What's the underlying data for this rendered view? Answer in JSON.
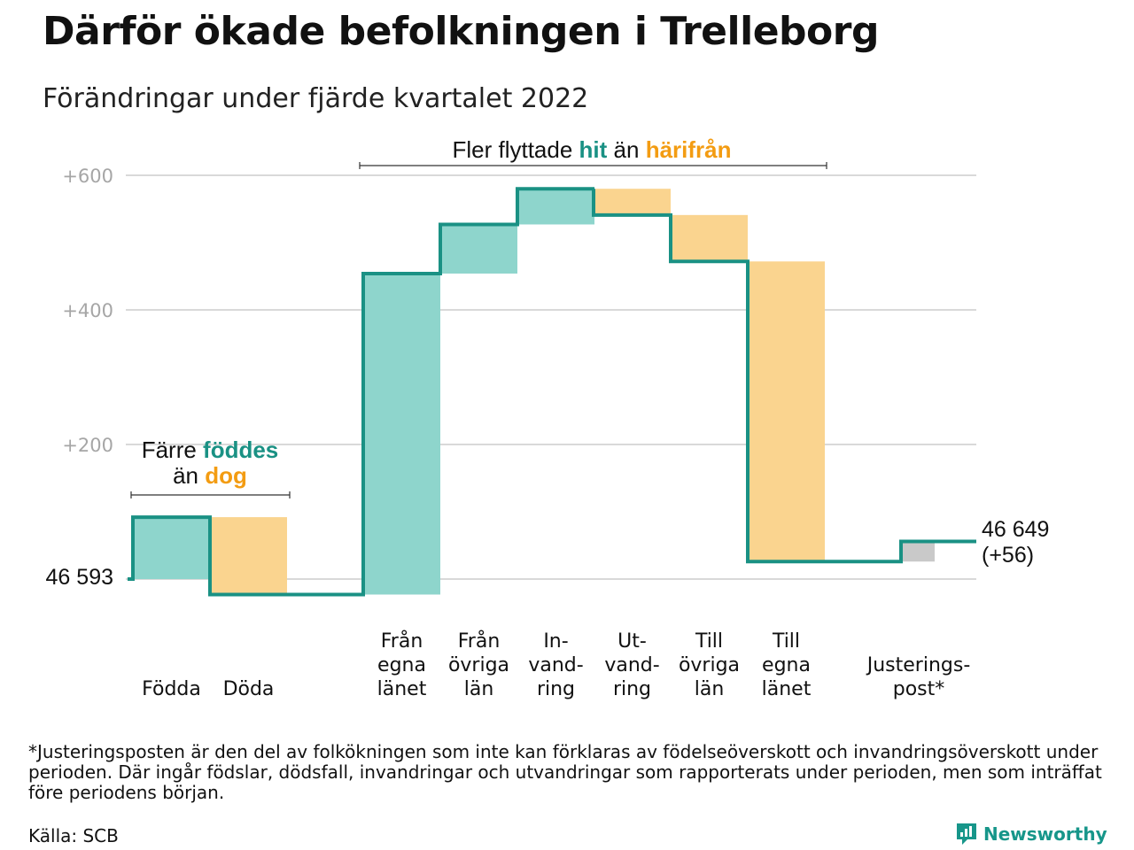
{
  "title": "Därför ökade befolkningen i Trelleborg",
  "subtitle": "Förändringar under fjärde kvartalet 2022",
  "colors": {
    "increase": "#8ed5cc",
    "decrease": "#fad48f",
    "adjustment": "#c9c9c9",
    "line": "#1a9184",
    "teal_text": "#1a9184",
    "orange_text": "#f39c12",
    "grid": "#d9d9d9",
    "tick": "#a6a6a6"
  },
  "chart_data": {
    "type": "waterfall",
    "start": {
      "label": "46 593",
      "population": 46593
    },
    "end": {
      "label_line1": "46 649",
      "label_line2": "(+56)",
      "population": 46649,
      "change": 56
    },
    "y_ticks": [
      "+200",
      "+400",
      "+600"
    ],
    "ylim": [
      -30,
      620
    ],
    "bars": [
      {
        "key": "fodda",
        "label_lines": [
          "Födda"
        ],
        "delta": 92,
        "kind": "increase"
      },
      {
        "key": "doda",
        "label_lines": [
          "Döda"
        ],
        "delta": -115,
        "kind": "decrease"
      },
      {
        "key": "fran_egna",
        "label_lines": [
          "Från",
          "egna",
          "länet"
        ],
        "delta": 477,
        "kind": "increase"
      },
      {
        "key": "fran_ovriga",
        "label_lines": [
          "Från",
          "övriga",
          "län"
        ],
        "delta": 73,
        "kind": "increase"
      },
      {
        "key": "invandring",
        "label_lines": [
          "In-",
          "vand-",
          "ring"
        ],
        "delta": 53,
        "kind": "increase"
      },
      {
        "key": "utvandring",
        "label_lines": [
          "Ut-",
          "vand-",
          "ring"
        ],
        "delta": -39,
        "kind": "decrease"
      },
      {
        "key": "till_ovriga",
        "label_lines": [
          "Till",
          "övriga",
          "län"
        ],
        "delta": -69,
        "kind": "decrease"
      },
      {
        "key": "till_egna",
        "label_lines": [
          "Till",
          "egna",
          "länet"
        ],
        "delta": -446,
        "kind": "decrease"
      },
      {
        "key": "justering",
        "label_lines": [
          "Justerings-",
          "post*"
        ],
        "delta": 30,
        "kind": "adjustment"
      }
    ]
  },
  "annotations": {
    "natural": {
      "pre": "Färre ",
      "hl1": "föddes",
      "mid": "än ",
      "hl2": "dog"
    },
    "migration": {
      "pre": "Fler flyttade ",
      "hl1": "hit",
      "mid": " än ",
      "hl2": "härifrån"
    }
  },
  "footnote": "*Justeringsposten är den del av folkökningen som inte kan förklaras av födelseöverskott och invandringsöverskott under perioden. Där ingår födslar, dödsfall, invandringar och utvandringar som rapporterats under perioden, men som inträffat före periodens början.",
  "source": "Källa: SCB",
  "logo": {
    "text": "Newsworthy",
    "icon": "newsworthy-logo-icon"
  }
}
